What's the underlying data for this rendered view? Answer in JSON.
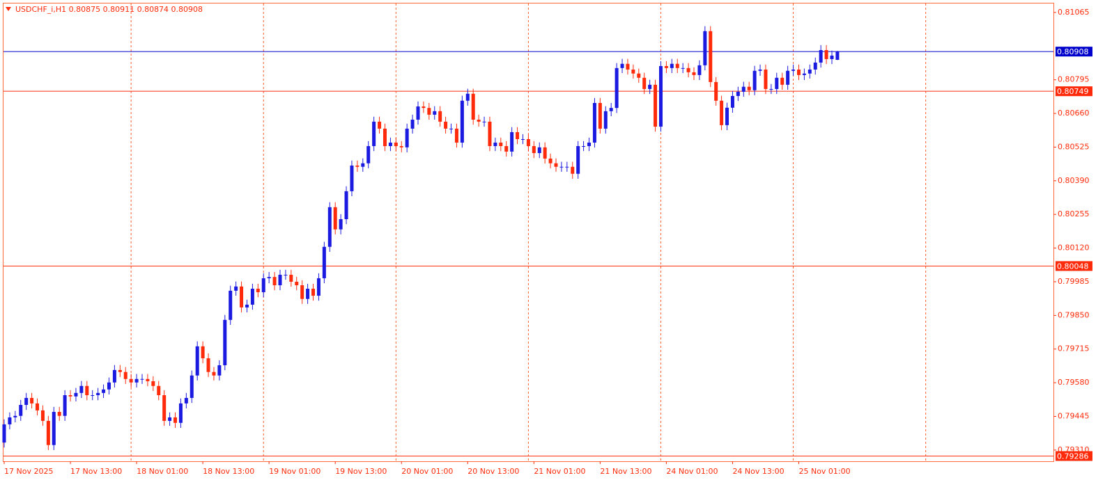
{
  "chart_data": {
    "type": "candlestick",
    "title": "USDCHF_i,H1  0.80875 0.80911 0.80874 0.80908",
    "up_color": "#1a1ae0",
    "down_color": "#ff2a0a",
    "ylim": [
      0.79265,
      0.81101
    ],
    "yticks": [
      0.81065,
      0.80795,
      {
        "value": 0.8066,
        "label": "0.80660"
      },
      0.80525,
      {
        "value": 0.8039,
        "label": "0.80390"
      },
      0.80255,
      {
        "value": 0.8012,
        "label": "0.80120"
      },
      0.79985,
      {
        "value": 0.7985,
        "label": "0.79850"
      },
      0.79715,
      {
        "value": 0.7958,
        "label": "0.79580"
      },
      0.79445,
      {
        "value": 0.7931,
        "label": "0.79310"
      }
    ],
    "levels": [
      {
        "value": 0.80908,
        "color": "#0000cc"
      },
      {
        "value": 0.80749,
        "color": "#ff2a0a"
      },
      {
        "value": 0.80048,
        "color": "#ff2a0a"
      },
      {
        "value": 0.79286,
        "color": "#ff2a0a"
      }
    ],
    "categories": [
      "17 Nov 2025",
      null,
      null,
      null,
      null,
      null,
      null,
      null,
      null,
      null,
      null,
      null,
      "17 Nov 13:00",
      null,
      null,
      null,
      null,
      null,
      null,
      null,
      null,
      null,
      null,
      null,
      "18 Nov 01:00",
      null,
      null,
      null,
      null,
      null,
      null,
      null,
      null,
      null,
      null,
      null,
      "18 Nov 13:00",
      null,
      null,
      null,
      null,
      null,
      null,
      null,
      null,
      null,
      null,
      null,
      "19 Nov 01:00",
      null,
      null,
      null,
      null,
      null,
      null,
      null,
      null,
      null,
      null,
      null,
      "19 Nov 13:00",
      null,
      null,
      null,
      null,
      null,
      null,
      null,
      null,
      null,
      null,
      null,
      "20 Nov 01:00",
      null,
      null,
      null,
      null,
      null,
      null,
      null,
      null,
      null,
      null,
      null,
      "20 Nov 13:00",
      null,
      null,
      null,
      null,
      null,
      null,
      null,
      null,
      null,
      null,
      null,
      "21 Nov 01:00",
      null,
      null,
      null,
      null,
      null,
      null,
      null,
      null,
      null,
      null,
      null,
      "21 Nov 13:00",
      null,
      null,
      null,
      null,
      null,
      null,
      null,
      null,
      null,
      null,
      null,
      "24 Nov 01:00",
      null,
      null,
      null,
      null,
      null,
      null,
      null,
      null,
      null,
      null,
      null,
      "24 Nov 13:00",
      null,
      null,
      null,
      null,
      null,
      null,
      null,
      null,
      null,
      null,
      null,
      "25 Nov 01:00",
      null,
      null,
      null,
      null,
      null,
      null,
      null
    ],
    "open": [
      0.7934,
      0.79413,
      0.79441,
      0.79447,
      0.79491,
      0.79519,
      0.79497,
      0.79469,
      0.79427,
      0.7933,
      0.79463,
      0.79447,
      0.7953,
      0.79525,
      0.79539,
      0.79567,
      0.7953,
      0.7953,
      0.79539,
      0.79553,
      0.79581,
      0.79631,
      0.79623,
      0.79595,
      0.79581,
      0.79595,
      0.79595,
      0.79586,
      0.79567,
      0.7953,
      0.79427,
      0.79441,
      0.79419,
      0.79497,
      0.79519,
      0.79609,
      0.79726,
      0.79678,
      0.79623,
      0.79609,
      0.7965,
      0.79832,
      0.79949,
      0.79966,
      0.79882,
      0.79893,
      0.79957,
      0.79943,
      0.79999,
      0.80004,
      0.79971,
      0.80013,
      0.80013,
      0.79985,
      0.79971,
      0.79916,
      0.79957,
      0.79929,
      0.79999,
      0.80125,
      0.80284,
      0.80195,
      0.80236,
      0.80348,
      0.80451,
      0.80446,
      0.8046,
      0.80529,
      0.80627,
      0.80599,
      0.80529,
      0.80543,
      0.80529,
      0.80524,
      0.80599,
      0.80635,
      0.80688,
      0.80682,
      0.80655,
      0.80669,
      0.80627,
      0.80599,
      0.80599,
      0.80543,
      0.80711,
      0.80739,
      0.80635,
      0.80627,
      0.80627,
      0.80529,
      0.80543,
      0.80529,
      0.80507,
      0.80585,
      0.80557,
      0.80557,
      0.80529,
      0.80501,
      0.80524,
      0.80479,
      0.8046,
      0.80446,
      0.80446,
      0.80446,
      0.80418,
      0.80529,
      0.80529,
      0.80543,
      0.80702,
      0.80599,
      0.80669,
      0.80682,
      0.80842,
      0.80859,
      0.80836,
      0.8082,
      0.80803,
      0.80758,
      0.80775,
      0.80607,
      0.8085,
      0.80842,
      0.80859,
      0.80842,
      0.80842,
      0.80825,
      0.80814,
      0.80853,
      0.8099,
      0.80786,
      0.80711,
      0.80613,
      0.80683,
      0.8073,
      0.80747,
      0.80767,
      0.80753,
      0.80831,
      0.80836,
      0.80758,
      0.80758,
      0.80803,
      0.80775,
      0.80831,
      0.80836,
      0.80814,
      0.8082,
      0.80836,
      0.80864,
      0.80914,
      0.80878,
      0.80875
    ],
    "high": [
      0.79433,
      0.79461,
      0.79467,
      0.79511,
      0.79539,
      0.79539,
      0.79517,
      0.79489,
      0.79447,
      0.79483,
      0.79483,
      0.7955,
      0.7955,
      0.79559,
      0.79587,
      0.79587,
      0.7955,
      0.79559,
      0.79573,
      0.79601,
      0.79651,
      0.79651,
      0.79643,
      0.79615,
      0.79615,
      0.79615,
      0.79615,
      0.79606,
      0.79587,
      0.7955,
      0.79461,
      0.79461,
      0.79517,
      0.79539,
      0.79629,
      0.79746,
      0.79746,
      0.79698,
      0.79643,
      0.7967,
      0.79852,
      0.79969,
      0.79986,
      0.79986,
      0.79913,
      0.79977,
      0.79977,
      0.80019,
      0.80024,
      0.80024,
      0.80033,
      0.80033,
      0.80033,
      0.80005,
      0.79991,
      0.79977,
      0.79977,
      0.80019,
      0.80145,
      0.80304,
      0.80304,
      0.80256,
      0.80368,
      0.80471,
      0.80471,
      0.8048,
      0.80549,
      0.80647,
      0.80647,
      0.80619,
      0.80563,
      0.80563,
      0.80549,
      0.80619,
      0.80655,
      0.80708,
      0.80708,
      0.80702,
      0.80689,
      0.80689,
      0.80647,
      0.80619,
      0.80619,
      0.80731,
      0.80759,
      0.80759,
      0.80655,
      0.80647,
      0.80647,
      0.80563,
      0.80563,
      0.80549,
      0.80605,
      0.80605,
      0.80577,
      0.80577,
      0.80549,
      0.80544,
      0.80544,
      0.80499,
      0.8048,
      0.80466,
      0.80466,
      0.80466,
      0.80549,
      0.80549,
      0.80563,
      0.80722,
      0.80722,
      0.80689,
      0.80702,
      0.80862,
      0.80879,
      0.80879,
      0.80856,
      0.8084,
      0.80823,
      0.80795,
      0.80795,
      0.8087,
      0.8087,
      0.80879,
      0.80879,
      0.80862,
      0.80862,
      0.80845,
      0.80873,
      0.8101,
      0.8101,
      0.80806,
      0.80731,
      0.80703,
      0.8075,
      0.80767,
      0.80787,
      0.80787,
      0.80851,
      0.80856,
      0.80856,
      0.80778,
      0.80823,
      0.80823,
      0.80851,
      0.80856,
      0.80856,
      0.8084,
      0.80856,
      0.80884,
      0.80934,
      0.80934,
      0.80912,
      0.80911
    ],
    "low": [
      0.7932,
      0.79393,
      0.79421,
      0.79427,
      0.79471,
      0.79477,
      0.79449,
      0.79407,
      0.7931,
      0.7931,
      0.79427,
      0.79427,
      0.79505,
      0.79505,
      0.79519,
      0.7951,
      0.7951,
      0.7951,
      0.79519,
      0.79533,
      0.79561,
      0.79603,
      0.79575,
      0.79561,
      0.79561,
      0.79575,
      0.79566,
      0.79547,
      0.7951,
      0.79407,
      0.79407,
      0.79399,
      0.79399,
      0.79477,
      0.79499,
      0.79589,
      0.79658,
      0.79603,
      0.79589,
      0.79589,
      0.7963,
      0.79812,
      0.79929,
      0.79862,
      0.79862,
      0.79873,
      0.79923,
      0.79923,
      0.79979,
      0.79951,
      0.79951,
      0.79993,
      0.79965,
      0.79951,
      0.79896,
      0.79896,
      0.79909,
      0.79909,
      0.79979,
      0.80105,
      0.80175,
      0.80175,
      0.80216,
      0.80328,
      0.80426,
      0.80426,
      0.8044,
      0.80509,
      0.80579,
      0.80509,
      0.80509,
      0.80509,
      0.80504,
      0.80504,
      0.80579,
      0.80615,
      0.80662,
      0.80635,
      0.80635,
      0.80607,
      0.80579,
      0.80579,
      0.80523,
      0.80523,
      0.80691,
      0.80615,
      0.80607,
      0.80607,
      0.80509,
      0.80509,
      0.80509,
      0.80487,
      0.80487,
      0.80537,
      0.80537,
      0.80509,
      0.80481,
      0.80481,
      0.80459,
      0.8044,
      0.80426,
      0.80426,
      0.80426,
      0.80398,
      0.80398,
      0.80509,
      0.80509,
      0.80523,
      0.80579,
      0.80579,
      0.80649,
      0.80662,
      0.80822,
      0.80816,
      0.808,
      0.80783,
      0.80738,
      0.80738,
      0.80587,
      0.80587,
      0.80822,
      0.80822,
      0.80822,
      0.80822,
      0.80805,
      0.80794,
      0.80794,
      0.80833,
      0.80766,
      0.80691,
      0.80593,
      0.80593,
      0.80663,
      0.8071,
      0.80727,
      0.80733,
      0.80733,
      0.80811,
      0.80738,
      0.80738,
      0.80738,
      0.80755,
      0.80755,
      0.80811,
      0.80794,
      0.80794,
      0.808,
      0.80816,
      0.80844,
      0.80858,
      0.80858,
      0.80874
    ],
    "close": [
      0.79413,
      0.79441,
      0.79447,
      0.79491,
      0.79519,
      0.79497,
      0.79469,
      0.79427,
      0.7933,
      0.79463,
      0.79447,
      0.7953,
      0.79525,
      0.79539,
      0.79567,
      0.7953,
      0.7953,
      0.79539,
      0.79553,
      0.79581,
      0.79631,
      0.79623,
      0.79595,
      0.79581,
      0.79595,
      0.79595,
      0.79586,
      0.79567,
      0.7953,
      0.79427,
      0.79441,
      0.79419,
      0.79497,
      0.79519,
      0.79609,
      0.79726,
      0.79678,
      0.79623,
      0.79609,
      0.7965,
      0.79832,
      0.79949,
      0.79966,
      0.79882,
      0.79893,
      0.79957,
      0.79943,
      0.79999,
      0.80004,
      0.79971,
      0.80013,
      0.80013,
      0.79985,
      0.79971,
      0.79916,
      0.79957,
      0.79929,
      0.79999,
      0.80125,
      0.80284,
      0.80195,
      0.80236,
      0.80348,
      0.80451,
      0.80446,
      0.8046,
      0.80529,
      0.80627,
      0.80599,
      0.80529,
      0.80543,
      0.80529,
      0.80524,
      0.80599,
      0.80635,
      0.80688,
      0.80682,
      0.80655,
      0.80669,
      0.80627,
      0.80599,
      0.80599,
      0.80543,
      0.80711,
      0.80739,
      0.80635,
      0.80627,
      0.80627,
      0.80529,
      0.80543,
      0.80529,
      0.80507,
      0.80585,
      0.80557,
      0.80557,
      0.80529,
      0.80501,
      0.80524,
      0.80479,
      0.8046,
      0.80446,
      0.80446,
      0.80446,
      0.80418,
      0.80529,
      0.80529,
      0.80543,
      0.80702,
      0.80599,
      0.80669,
      0.80682,
      0.80842,
      0.80859,
      0.80836,
      0.8082,
      0.80803,
      0.80758,
      0.80775,
      0.80607,
      0.8085,
      0.80842,
      0.80859,
      0.80842,
      0.80842,
      0.80825,
      0.80814,
      0.80853,
      0.8099,
      0.80786,
      0.80711,
      0.80613,
      0.80683,
      0.8073,
      0.80747,
      0.80767,
      0.80753,
      0.80831,
      0.80836,
      0.80758,
      0.80758,
      0.80803,
      0.80775,
      0.80831,
      0.80836,
      0.80814,
      0.8082,
      0.80836,
      0.80864,
      0.80914,
      0.80878,
      0.80892,
      0.80908
    ]
  }
}
